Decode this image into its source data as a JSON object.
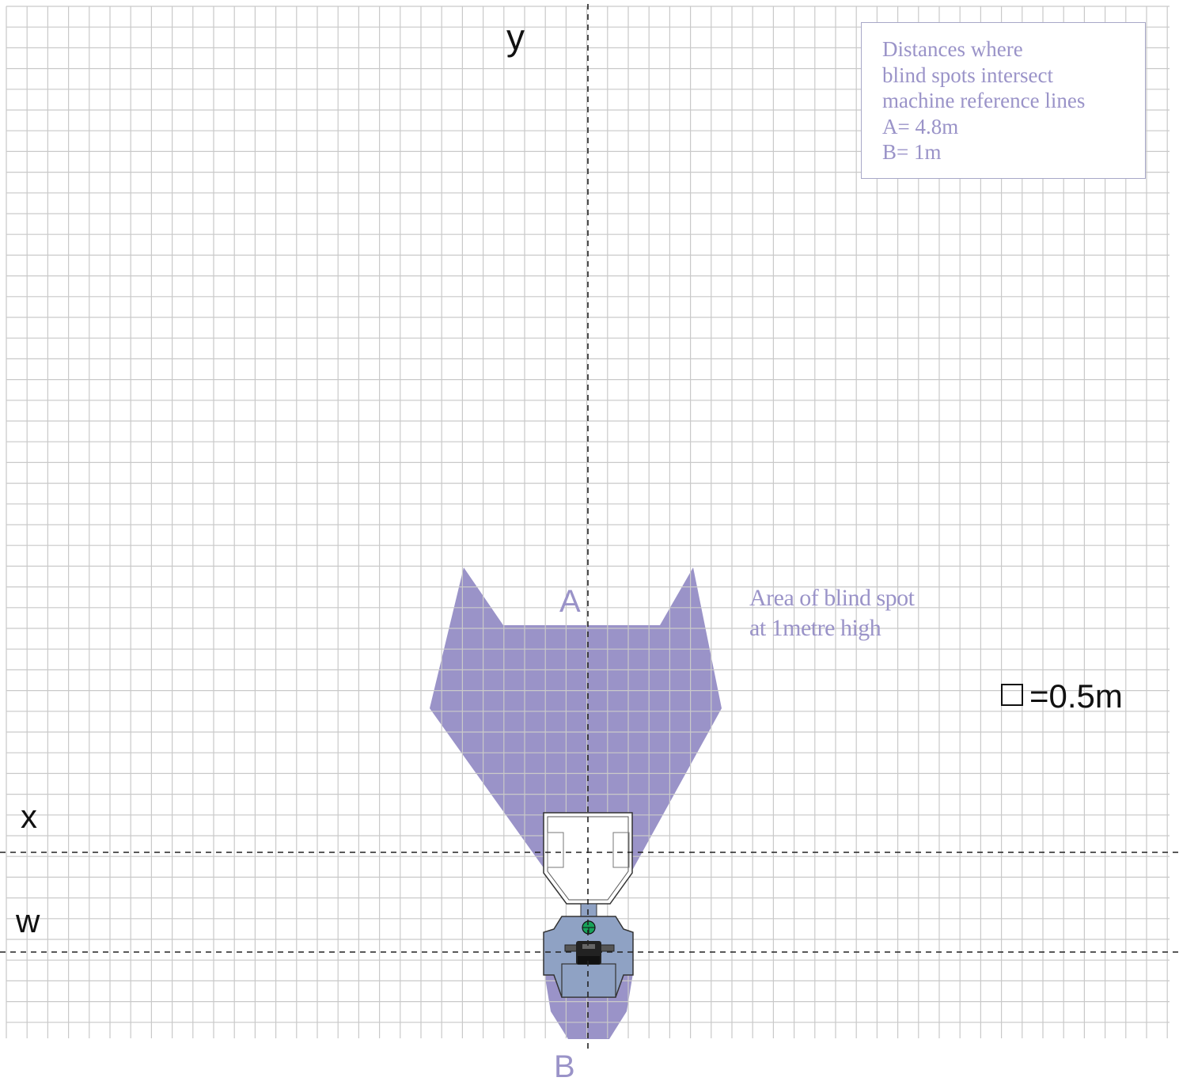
{
  "axes": {
    "y_label": "y",
    "x_label": "x",
    "w_label": "w"
  },
  "points": {
    "a_label": "A",
    "b_label": "B"
  },
  "legend": {
    "lines": [
      "Distances where",
      "blind spots intersect",
      "machine reference lines",
      "A= 4.8m",
      "B= 1m"
    ]
  },
  "blind_spot_label": {
    "lines": [
      "Area of blind spot",
      "at 1metre high"
    ]
  },
  "scale": {
    "text": "=0.5m",
    "grid_square_m": 0.5
  },
  "distances": {
    "A_m": 4.8,
    "B_m": 1
  },
  "colors": {
    "blind_spot": "#9a93c8",
    "grid_line": "#c9c9c9",
    "axis_line": "#222222",
    "machine_body": "#8fa2c4",
    "machine_cab": "#ffffff",
    "seat": "#222222",
    "wheel": "#17a35a",
    "label_purple": "#9a93c8"
  },
  "icons": {
    "scale_square": "square-outline",
    "steering_wheel": "steering-wheel-icon"
  }
}
